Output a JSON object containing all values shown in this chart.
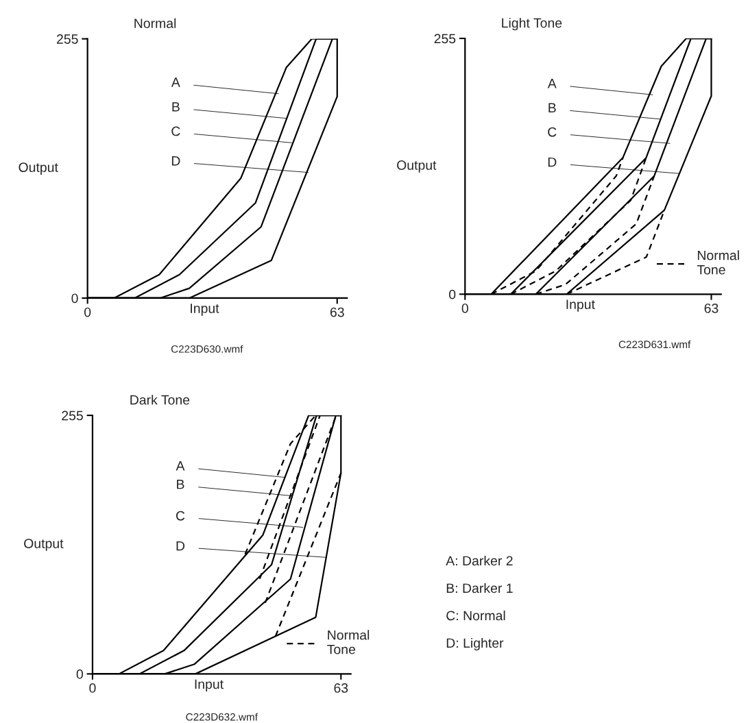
{
  "chart_data": [
    {
      "type": "line",
      "title": "Normal",
      "xlabel": "Input",
      "ylabel": "Output",
      "xlim": [
        0,
        65.5
      ],
      "ylim": [
        0,
        255
      ],
      "xticks": [
        0,
        63
      ],
      "yticks": [
        0,
        255
      ],
      "grid": false,
      "legend": false,
      "series": [
        {
          "color": "#000000",
          "line_style": "solid",
          "x": [
            0,
            6.7,
            18.1,
            38.7,
            50.2,
            56.6,
            63
          ],
          "values": [
            0,
            0,
            23.1,
            118,
            227,
            255,
            255
          ]
        },
        {
          "color": "#000000",
          "line_style": "solid",
          "x": [
            0,
            11.9,
            23.2,
            42.4,
            57.7,
            63
          ],
          "values": [
            0,
            0,
            23.1,
            93.7,
            255,
            255
          ]
        },
        {
          "color": "#000000",
          "line_style": "solid",
          "x": [
            0,
            18.3,
            25.7,
            43.8,
            61.8,
            63
          ],
          "values": [
            0,
            0,
            9.7,
            70.1,
            255,
            255
          ]
        },
        {
          "color": "#000000",
          "line_style": "solid",
          "x": [
            0,
            25.7,
            46.4,
            63,
            63
          ],
          "values": [
            0,
            0,
            37.1,
            198.2,
            255
          ]
        }
      ],
      "annotations": [
        {
          "text": "A",
          "x": 48.2,
          "y": 201
        },
        {
          "text": "B",
          "x": 50.2,
          "y": 176.8
        },
        {
          "text": "C",
          "x": 51.5,
          "y": 152.8
        },
        {
          "text": "D",
          "x": 55.7,
          "y": 123.6
        },
        "C223D630.wmf"
      ]
    },
    {
      "type": "line",
      "title": "Light Tone",
      "xlabel": "Input",
      "ylabel": "Output",
      "xlim": [
        0,
        65.5
      ],
      "ylim": [
        0,
        255
      ],
      "xticks": [
        0,
        63
      ],
      "yticks": [
        0,
        255
      ],
      "grid": false,
      "legend": "bottom right",
      "series": [
        {
          "color": "#000000",
          "line_style": "solid",
          "x": [
            0,
            6.7,
            40.4,
            50.2,
            56.6,
            63
          ],
          "values": [
            0,
            0,
            136.2,
            227.2,
            255,
            255
          ]
        },
        {
          "color": "#000000",
          "line_style": "solid",
          "x": [
            0,
            11.7,
            46.3,
            57.8,
            63
          ],
          "values": [
            0,
            0,
            135.7,
            255,
            255
          ]
        },
        {
          "color": "#000000",
          "line_style": "solid",
          "x": [
            0,
            18.1,
            48.4,
            61.7,
            63
          ],
          "values": [
            0,
            0,
            117.9,
            255,
            255
          ]
        },
        {
          "color": "#000000",
          "line_style": "solid",
          "x": [
            0,
            26.0,
            51.0,
            63,
            63
          ],
          "values": [
            0,
            0,
            83.8,
            197.6,
            255
          ]
        },
        {
          "name": "Normal\nTone",
          "color": "#000000",
          "line_style": "dashed",
          "x": [
            6.7,
            18.1,
            38.7,
            40.4
          ],
          "values": [
            0,
            23.1,
            118,
            136.2
          ]
        },
        {
          "color": "#000000",
          "line_style": "dashed",
          "x": [
            11.7,
            23.2,
            42.4,
            46.3
          ],
          "values": [
            0,
            23.1,
            93.7,
            135.7
          ]
        },
        {
          "color": "#000000",
          "line_style": "dashed",
          "x": [
            18.1,
            25.7,
            43.8,
            48.4
          ],
          "values": [
            0,
            9.7,
            70.1,
            117.9
          ]
        },
        {
          "color": "#000000",
          "line_style": "dashed",
          "x": [
            26.0,
            46.4,
            51.0
          ],
          "values": [
            0,
            37.1,
            83.8
          ]
        }
      ],
      "annotations": [
        {
          "text": "A",
          "x": 48.0,
          "y": 198.8
        },
        {
          "text": "B",
          "x": 50.0,
          "y": 174.5
        },
        {
          "text": "C",
          "x": 52.4,
          "y": 150.3
        },
        {
          "text": "D",
          "x": 54.85,
          "y": 120.3
        },
        "C223D631.wmf"
      ]
    },
    {
      "type": "line",
      "title": "Dark Tone",
      "xlabel": "Input",
      "ylabel": "Output",
      "xlim": [
        0,
        65.5
      ],
      "ylim": [
        0,
        255
      ],
      "xticks": [
        0,
        63
      ],
      "yticks": [
        0,
        255
      ],
      "grid": false,
      "legend": "bottom right",
      "series": [
        {
          "color": "#000000",
          "line_style": "solid",
          "x": [
            0,
            6.7,
            18.0,
            43.2,
            54.8,
            63
          ],
          "values": [
            0,
            0,
            23.0,
            137.0,
            255,
            255
          ]
        },
        {
          "color": "#000000",
          "line_style": "solid",
          "x": [
            0,
            11.9,
            23.2,
            45.4,
            56.8,
            63
          ],
          "values": [
            0,
            0,
            23.0,
            107.7,
            255,
            255
          ]
        },
        {
          "color": "#000000",
          "line_style": "solid",
          "x": [
            0,
            18.3,
            25.8,
            50.2,
            61.7,
            63
          ],
          "values": [
            0,
            0,
            9.5,
            93.5,
            255,
            255
          ]
        },
        {
          "color": "#000000",
          "line_style": "solid",
          "x": [
            0,
            26.1,
            56.6,
            63,
            63
          ],
          "values": [
            0,
            0,
            55.9,
            198.2,
            255
          ]
        },
        {
          "name": "Normal\nTone",
          "color": "#000000",
          "line_style": "dashed",
          "x": [
            38.7,
            50.2,
            56.6
          ],
          "values": [
            118,
            227,
            255
          ]
        },
        {
          "color": "#000000",
          "line_style": "dashed",
          "x": [
            42.4,
            57.7
          ],
          "values": [
            93.7,
            255
          ]
        },
        {
          "color": "#000000",
          "line_style": "dashed",
          "x": [
            43.8,
            61.8
          ],
          "values": [
            70.1,
            255
          ]
        },
        {
          "color": "#000000",
          "line_style": "dashed",
          "x": [
            46.4,
            63
          ],
          "values": [
            37.1,
            198.2
          ]
        }
      ],
      "annotations": [
        {
          "text": "A",
          "x": 48.7,
          "y": 193.9
        },
        {
          "text": "B",
          "x": 50.4,
          "y": 175.7
        },
        {
          "text": "C",
          "x": 53.3,
          "y": 144.6
        },
        {
          "text": "D",
          "x": 59.4,
          "y": 114.9
        },
        "C223D632.wmf",
        "A: Darker 2",
        "B: Darker 1",
        "C: Normal",
        "D: Lighter"
      ]
    }
  ]
}
